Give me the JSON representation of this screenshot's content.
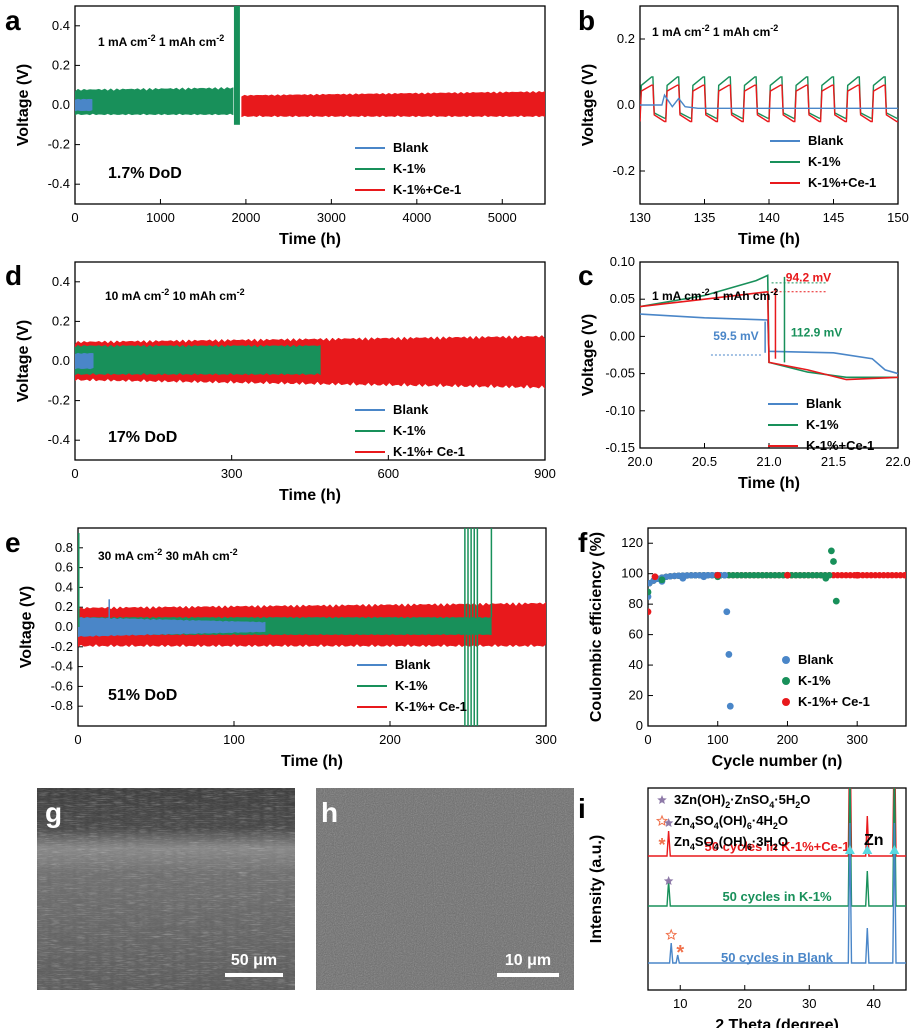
{
  "colors": {
    "blank": "#4a86c8",
    "k1": "#18905a",
    "kce": "#e8191c",
    "starPurple": "#8e7aa8",
    "starOrange": "#f0704a",
    "triangle": "#5ad8e0"
  },
  "chart_data": [
    {
      "id": "a",
      "type": "line",
      "panel_label": "a",
      "condition": "1 mA cm⁻² 1 mAh cm⁻²",
      "dod": "1.7% DoD",
      "xlabel": "Time (h)",
      "ylabel": "Voltage (V)",
      "xlim": [
        0,
        5500
      ],
      "ylim": [
        -0.5,
        0.5
      ],
      "xticks": [
        0,
        1000,
        2000,
        3000,
        4000,
        5000
      ],
      "yticks": [
        -0.4,
        -0.2,
        0.0,
        0.2,
        0.4
      ],
      "series": [
        {
          "name": "Blank",
          "color": "#4a86c8",
          "x": [
            0,
            200
          ],
          "upper": [
            0.03,
            0.03
          ],
          "lower": [
            -0.03,
            -0.03
          ]
        },
        {
          "name": "K-1%",
          "color": "#18905a",
          "x": [
            0,
            1850
          ],
          "upper": [
            0.08,
            0.09
          ],
          "lower": [
            -0.05,
            -0.05
          ]
        },
        {
          "name": "K-1%+Ce-1",
          "color": "#e8191c",
          "x": [
            1950,
            5500
          ],
          "upper": [
            0.05,
            0.07
          ],
          "lower": [
            -0.06,
            -0.06
          ]
        }
      ],
      "legend": "bottom-right"
    },
    {
      "id": "b",
      "type": "line",
      "panel_label": "b",
      "condition": "1 mA cm⁻² 1 mAh cm⁻²",
      "xlabel": "Time (h)",
      "ylabel": "Voltage (V)",
      "xlim": [
        130,
        150
      ],
      "ylim": [
        -0.3,
        0.3
      ],
      "xticks": [
        130,
        135,
        140,
        145,
        150
      ],
      "yticks": [
        -0.2,
        0.0,
        0.2
      ],
      "series": [
        {
          "name": "Blank",
          "color": "#4a86c8",
          "x": [
            130,
            132,
            134,
            136
          ],
          "y": [
            0.0,
            0.0,
            -0.01,
            -0.01
          ]
        },
        {
          "name": "K-1%",
          "color": "#18905a",
          "x": [
            130,
            150
          ],
          "y": [
            0.07,
            -0.04
          ]
        },
        {
          "name": "K-1%+Ce-1",
          "color": "#e8191c",
          "x": [
            130,
            150
          ],
          "y": [
            0.05,
            -0.05
          ]
        }
      ],
      "legend": "bottom-right"
    },
    {
      "id": "d",
      "type": "line",
      "panel_label": "d",
      "condition": "10 mA cm⁻² 10 mAh cm⁻²",
      "dod": "17% DoD",
      "xlabel": "Time (h)",
      "ylabel": "Voltage (V)",
      "xlim": [
        0,
        900
      ],
      "ylim": [
        -0.5,
        0.5
      ],
      "xticks": [
        0,
        300,
        600,
        900
      ],
      "yticks": [
        -0.4,
        -0.2,
        0.0,
        0.2,
        0.4
      ],
      "series": [
        {
          "name": "Blank",
          "color": "#4a86c8",
          "x": [
            0,
            35
          ],
          "upper": [
            0.04,
            0.04
          ],
          "lower": [
            -0.04,
            -0.04
          ]
        },
        {
          "name": "K-1%",
          "color": "#18905a",
          "x": [
            0,
            470
          ],
          "upper": [
            0.08,
            0.08
          ],
          "lower": [
            -0.07,
            -0.07
          ]
        },
        {
          "name": "K-1%+ Ce-1",
          "color": "#e8191c",
          "x": [
            0,
            900
          ],
          "upper": [
            0.1,
            0.13
          ],
          "lower": [
            -0.1,
            -0.14
          ]
        }
      ],
      "legend": "bottom-right"
    },
    {
      "id": "c",
      "type": "line",
      "panel_label": "c",
      "condition": "1 mA cm⁻² 1 mAh cm⁻²",
      "xlabel": "Time (h)",
      "ylabel": "Voltage (V)",
      "xlim": [
        20.0,
        22.0
      ],
      "ylim": [
        -0.15,
        0.1
      ],
      "xticks": [
        20.0,
        20.5,
        21.0,
        21.5,
        22.0
      ],
      "yticks": [
        -0.15,
        -0.1,
        -0.05,
        0.0,
        0.05,
        0.1
      ],
      "series": [
        {
          "name": "Blank",
          "color": "#4a86c8",
          "x": [
            20.0,
            20.5,
            20.99,
            21.0,
            21.5,
            21.8,
            21.9,
            22.0
          ],
          "y": [
            0.03,
            0.025,
            0.022,
            -0.02,
            -0.022,
            -0.03,
            -0.045,
            -0.05
          ]
        },
        {
          "name": "K-1%",
          "color": "#18905a",
          "x": [
            20.0,
            20.5,
            20.9,
            20.99,
            21.0,
            21.3,
            21.6,
            22.0
          ],
          "y": [
            0.04,
            0.055,
            0.075,
            0.082,
            -0.035,
            -0.048,
            -0.055,
            -0.055
          ]
        },
        {
          "name": "K-1%+Ce-1",
          "color": "#e8191c",
          "x": [
            20.0,
            20.5,
            20.99,
            21.0,
            21.3,
            21.6,
            22.0
          ],
          "y": [
            0.04,
            0.05,
            0.06,
            -0.035,
            -0.045,
            -0.058,
            -0.055
          ]
        }
      ],
      "annotations": [
        "94.2 mV",
        "112.9 mV",
        "59.5 mV"
      ],
      "legend": "bottom-right"
    },
    {
      "id": "e",
      "type": "line",
      "panel_label": "e",
      "condition": "30 mA cm⁻² 30 mAh cm⁻²",
      "dod": "51% DoD",
      "xlabel": "Time (h)",
      "ylabel": "Voltage (V)",
      "xlim": [
        0,
        300
      ],
      "ylim": [
        -1.0,
        1.0
      ],
      "xticks": [
        0,
        100,
        200,
        300
      ],
      "yticks": [
        -0.8,
        -0.6,
        -0.4,
        -0.2,
        0.0,
        0.2,
        0.4,
        0.6,
        0.8
      ],
      "series": [
        {
          "name": "Blank",
          "color": "#4a86c8",
          "x": [
            0,
            120
          ],
          "upper": [
            0.1,
            0.05
          ],
          "lower": [
            -0.1,
            -0.05
          ]
        },
        {
          "name": "K-1%",
          "color": "#18905a",
          "x": [
            0,
            265
          ],
          "upper": [
            0.1,
            0.1
          ],
          "lower": [
            -0.08,
            -0.08
          ]
        },
        {
          "name": "K-1%+ Ce-1",
          "color": "#e8191c",
          "x": [
            0,
            300
          ],
          "upper": [
            0.2,
            0.25
          ],
          "lower": [
            -0.2,
            -0.2
          ]
        }
      ],
      "legend": "bottom-right"
    },
    {
      "id": "f",
      "type": "scatter",
      "panel_label": "f",
      "xlabel": "Cycle number (n)",
      "ylabel": "Coulombic efficiency (%)",
      "xlim": [
        0,
        370
      ],
      "ylim": [
        0,
        130
      ],
      "xticks": [
        0,
        100,
        200,
        300
      ],
      "yticks": [
        0,
        20,
        40,
        60,
        80,
        100,
        120
      ],
      "series": [
        {
          "name": "Blank",
          "color": "#4a86c8",
          "x": [
            0,
            20,
            50,
            80,
            110,
            113,
            116,
            118
          ],
          "y": [
            85,
            95,
            97,
            98,
            99,
            75,
            47,
            13
          ]
        },
        {
          "name": "K-1%",
          "color": "#18905a",
          "x": [
            0,
            20,
            100,
            200,
            255,
            263,
            266,
            270
          ],
          "y": [
            88,
            96,
            98,
            99,
            97,
            115,
            108,
            82
          ]
        },
        {
          "name": "K-1%+ Ce-1",
          "color": "#e8191c",
          "x": [
            0,
            10,
            100,
            200,
            300,
            370
          ],
          "y": [
            75,
            98,
            99,
            99,
            99,
            99
          ]
        }
      ],
      "legend": "bottom-right"
    },
    {
      "id": "i",
      "type": "line",
      "panel_label": "i",
      "xlabel": "2 Theta (degree)",
      "ylabel": "Intensity (a.u.)",
      "xlim": [
        5,
        45
      ],
      "xticks": [
        10,
        20,
        30,
        40
      ],
      "legend_entries": [
        "3Zn(OH)₂·ZnSO₄·5H₂O",
        "Zn₄SO₄(OH)₆·4H₂O",
        "Zn₄SO₄(OH)₆·3H₂O"
      ],
      "phase_label": "Zn",
      "series": [
        {
          "name": "50 cycles in K-1%+Ce-1",
          "color": "#e8191c",
          "peaks": [
            8.2,
            36.3,
            39.0,
            43.2
          ]
        },
        {
          "name": "50 cycles in K-1%",
          "color": "#18905a",
          "peaks": [
            8.2,
            36.3,
            39.0,
            43.2
          ]
        },
        {
          "name": "50 cycles in Blank",
          "color": "#4a86c8",
          "peaks": [
            8.6,
            9.6,
            36.3,
            39.0,
            43.2
          ]
        }
      ]
    }
  ],
  "images": {
    "g": {
      "label": "g",
      "scale": "50 μm"
    },
    "h": {
      "label": "h",
      "scale": "10 μm"
    }
  }
}
